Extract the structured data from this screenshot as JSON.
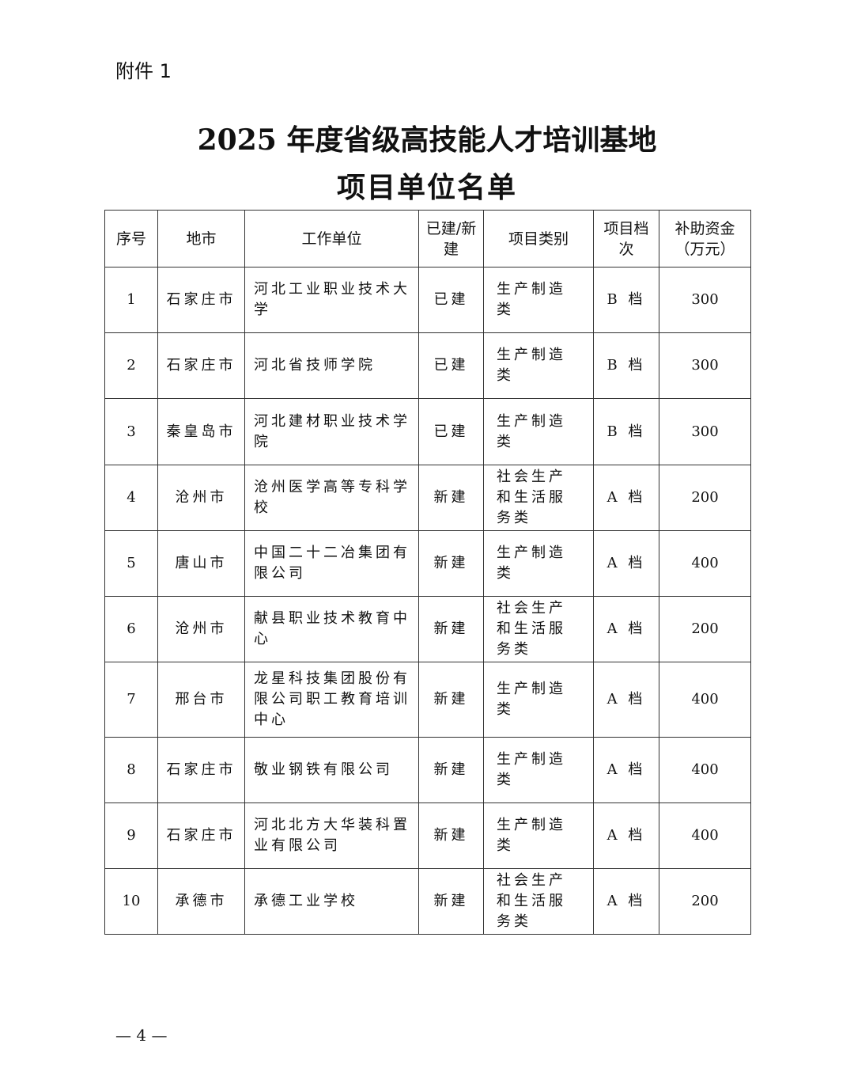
{
  "attachment": "附件 1",
  "title_line1": "2025 年度省级高技能人才培训基地",
  "title_line2": "项目单位名单",
  "table": {
    "headers": [
      "序号",
      "地市",
      "工作单位",
      "已建/新建",
      "项目类别",
      "项目档次",
      "补助资金（万元）"
    ],
    "rows": [
      [
        "1",
        "石家庄市",
        "河北工业职业技术大学",
        "已建",
        "生产制造类",
        "B 档",
        "300"
      ],
      [
        "2",
        "石家庄市",
        "河北省技师学院",
        "已建",
        "生产制造类",
        "B 档",
        "300"
      ],
      [
        "3",
        "秦皇岛市",
        "河北建材职业技术学院",
        "已建",
        "生产制造类",
        "B 档",
        "300"
      ],
      [
        "4",
        "沧州市",
        "沧州医学高等专科学校",
        "新建",
        "社会生产和生活服务类",
        "A 档",
        "200"
      ],
      [
        "5",
        "唐山市",
        "中国二十二冶集团有限公司",
        "新建",
        "生产制造类",
        "A 档",
        "400"
      ],
      [
        "6",
        "沧州市",
        "献县职业技术教育中心",
        "新建",
        "社会生产和生活服务类",
        "A 档",
        "200"
      ],
      [
        "7",
        "邢台市",
        "龙星科技集团股份有限公司职工教育培训中心",
        "新建",
        "生产制造类",
        "A 档",
        "400"
      ],
      [
        "8",
        "石家庄市",
        "敬业钢铁有限公司",
        "新建",
        "生产制造类",
        "A 档",
        "400"
      ],
      [
        "9",
        "石家庄市",
        "河北北方大华装科置业有限公司",
        "新建",
        "生产制造类",
        "A 档",
        "400"
      ],
      [
        "10",
        "承德市",
        "承德工业学校",
        "新建",
        "社会生产和生活服务类",
        "A 档",
        "200"
      ]
    ]
  },
  "page_number": "— 4 —"
}
